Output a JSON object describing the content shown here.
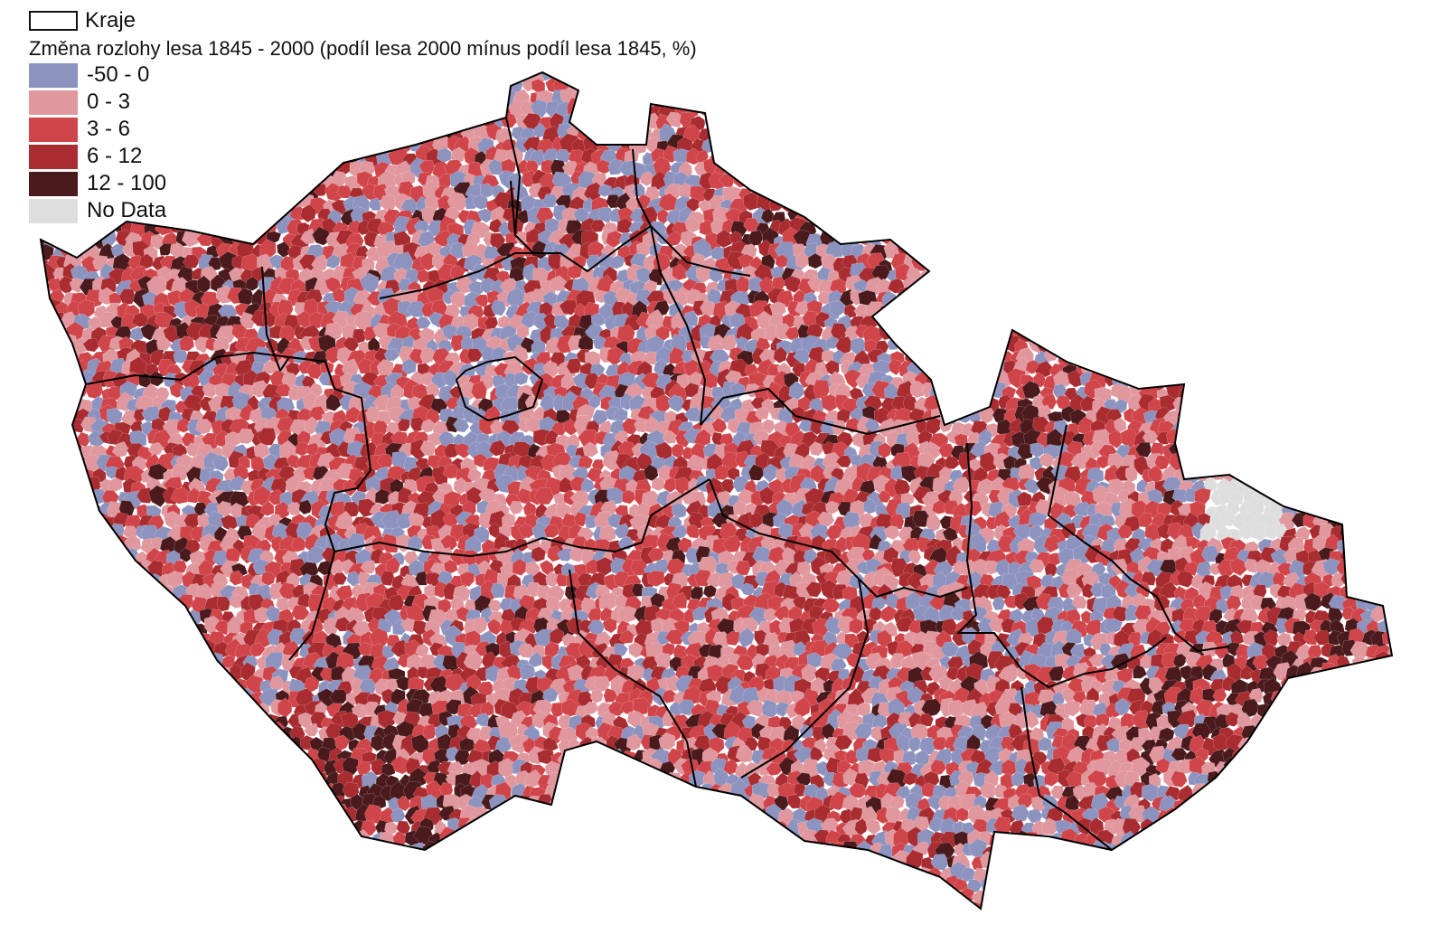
{
  "legend": {
    "boundary_label": "Kraje",
    "title": "Změna rozlohy lesa 1845 - 2000 (podíl lesa 2000 mínus podíl lesa 1845, %)",
    "classes": [
      {
        "label": "-50 - 0",
        "color": "#8d93bf"
      },
      {
        "label": "0 - 3",
        "color": "#e0979d"
      },
      {
        "label": "3 - 6",
        "color": "#d0454a"
      },
      {
        "label": "6 - 12",
        "color": "#a92c30"
      },
      {
        "label": "12 - 100",
        "color": "#4a1a1c"
      },
      {
        "label": "No Data",
        "color": "#dedede"
      }
    ]
  },
  "map": {
    "boundary_color": "#000000",
    "mosaic_seed": 7
  }
}
